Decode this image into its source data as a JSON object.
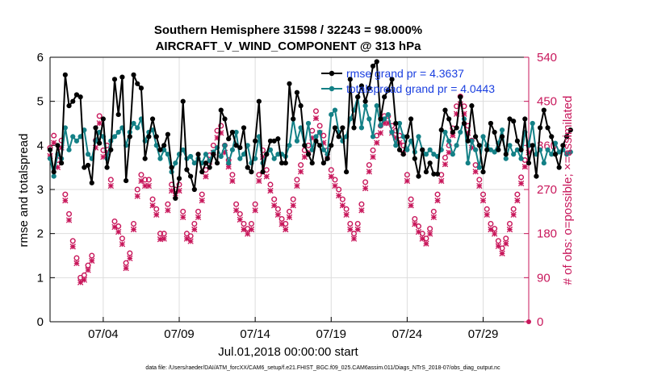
{
  "chart_data": {
    "type": "line",
    "title_line1": "Southern Hemisphere 31598 / 32243 = 98.000%",
    "title_line2": "AIRCRAFT_V_WIND_COMPONENT @ 313 hPa",
    "xlabel": "Jul.01,2018 00:00:00 start",
    "ylabel": "rmse and totalspread",
    "ylabel_right": "# of obs: o=possible; ×=assimilated",
    "xlim": [
      0.5,
      32.0
    ],
    "ylim": [
      0,
      6
    ],
    "ylim_right": [
      0,
      540
    ],
    "x_ticks": [
      {
        "x": 4,
        "label": "07/04"
      },
      {
        "x": 9,
        "label": "07/09"
      },
      {
        "x": 14,
        "label": "07/14"
      },
      {
        "x": 19,
        "label": "07/19"
      },
      {
        "x": 24,
        "label": "07/24"
      },
      {
        "x": 29,
        "label": "07/29"
      }
    ],
    "y_ticks": [
      0,
      1,
      2,
      3,
      4,
      5,
      6
    ],
    "y_ticks_right": [
      0,
      90,
      180,
      270,
      360,
      450,
      540
    ],
    "footer": "data file: /Users/raeder/DAI/ATM_forcXX/CAM6_setup/f.e21.FHIST_BGC.f09_025.CAM6assim.011/Diags_NTrS_2018-07/obs_diag_output.nc",
    "colors": {
      "rmse": "#000000",
      "spread": "#138086",
      "obs": "#c8175b",
      "legend_text": "#1a3fe0",
      "grid": "#dddddd"
    },
    "legend": [
      {
        "label": "rmse grand pr = 4.3637",
        "series": "rmse"
      },
      {
        "label": "totalspread grand pr = 4.0443",
        "series": "spread"
      }
    ],
    "series": [
      {
        "name": "rmse",
        "x_start": 0.5,
        "x_step": 0.25,
        "values": [
          3.9,
          3.4,
          4.0,
          3.6,
          5.6,
          4.9,
          5.0,
          5.15,
          5.1,
          3.5,
          3.55,
          3.15,
          4.4,
          4.05,
          4.6,
          3.5,
          3.9,
          5.5,
          4.7,
          5.55,
          3.2,
          4.2,
          5.6,
          5.4,
          5.3,
          3.7,
          4.2,
          4.6,
          4.2,
          3.9,
          4.0,
          4.25,
          3.5,
          2.8,
          3.25,
          5.0,
          3.45,
          3.3,
          3.0,
          3.8,
          3.4,
          3.6,
          3.5,
          3.8,
          3.6,
          4.8,
          4.6,
          4.15,
          4.3,
          4.0,
          3.95,
          4.4,
          3.5,
          3.4,
          4.1,
          5.0,
          3.4,
          3.8,
          4.1,
          4.1,
          4.15,
          3.6,
          3.6,
          5.4,
          4.6,
          5.2,
          4.9,
          4.0,
          3.8,
          3.6,
          4.1,
          4.0,
          3.6,
          3.7,
          4.0,
          4.4,
          4.2,
          4.4,
          3.4,
          5.5,
          4.4,
          5.1,
          5.35,
          5.0,
          5.3,
          5.8,
          5.9,
          4.6,
          5.1,
          5.25,
          5.5,
          4.5,
          3.9,
          3.8,
          4.2,
          4.6,
          3.7,
          3.3,
          3.9,
          3.4,
          3.6,
          3.35,
          3.35,
          4.35,
          4.8,
          4.6,
          4.3,
          4.4,
          5.1,
          4.5,
          4.1,
          4.9,
          4.2,
          4.0,
          3.4,
          3.9,
          4.5,
          4.3,
          3.9,
          4.2,
          3.8,
          4.6,
          4.55,
          4.1,
          3.9,
          4.6,
          3.6,
          4.0,
          3.3,
          4.4,
          4.8,
          4.4,
          4.2,
          3.8,
          3.5,
          4.0,
          4.2,
          4.35
        ]
      },
      {
        "name": "totalspread",
        "x_start": 0.5,
        "x_step": 0.25,
        "values": [
          3.7,
          3.3,
          3.8,
          3.7,
          4.4,
          3.9,
          4.2,
          4.1,
          4.2,
          4.35,
          3.8,
          3.7,
          4.1,
          4.3,
          4.2,
          3.7,
          4.1,
          4.2,
          4.3,
          4.4,
          4.0,
          4.3,
          4.5,
          4.4,
          4.6,
          4.1,
          4.3,
          4.35,
          4.0,
          3.7,
          3.9,
          3.8,
          3.4,
          3.6,
          3.8,
          3.9,
          3.7,
          3.75,
          3.6,
          3.7,
          3.6,
          3.8,
          3.65,
          3.85,
          3.95,
          3.75,
          4.0,
          3.6,
          3.9,
          4.3,
          3.7,
          3.8,
          4.0,
          3.6,
          3.7,
          4.2,
          3.6,
          3.8,
          3.9,
          3.7,
          3.8,
          3.8,
          3.75,
          4.0,
          4.6,
          4.1,
          4.4,
          4.0,
          4.5,
          3.9,
          4.2,
          4.3,
          3.9,
          3.8,
          4.7,
          4.8,
          4.3,
          4.1,
          4.2,
          4.6,
          4.8,
          5.1,
          4.4,
          4.9,
          4.6,
          4.2,
          4.9,
          4.45,
          4.6,
          4.7,
          4.3,
          4.0,
          4.5,
          4.2,
          3.9,
          4.1,
          3.85,
          4.2,
          3.9,
          3.8,
          3.9,
          3.8,
          3.75,
          3.9,
          4.3,
          4.1,
          3.8,
          4.0,
          4.3,
          4.6,
          3.6,
          4.1,
          3.9,
          3.5,
          4.2,
          4.0,
          3.9,
          3.85,
          4.05,
          4.35,
          3.7,
          4.0,
          3.8,
          3.9,
          3.7,
          4.3,
          4.0,
          4.5,
          3.8,
          3.9,
          3.6,
          3.9,
          3.8,
          4.05,
          3.85,
          3.9,
          3.8,
          3.85
        ]
      },
      {
        "name": "obs_possible",
        "x_start": 0.5,
        "x_step": 0.25,
        "values": [
          355,
          380,
          330,
          370,
          260,
          220,
          165,
          130,
          90,
          95,
          115,
          135,
          370,
          420,
          350,
          360,
          290,
          205,
          195,
          170,
          120,
          140,
          200,
          270,
          300,
          290,
          290,
          250,
          230,
          180,
          180,
          240,
          280,
          270,
          280,
          225,
          180,
          175,
          200,
          225,
          260,
          310,
          340,
          360,
          390,
          400,
          360,
          330,
          300,
          240,
          220,
          200,
          190,
          200,
          240,
          300,
          350,
          310,
          280,
          250,
          230,
          210,
          200,
          225,
          250,
          290,
          320,
          350,
          360,
          390,
          430,
          400,
          380,
          350,
          310,
          290,
          270,
          250,
          230,
          200,
          180,
          200,
          240,
          285,
          320,
          350,
          380,
          400,
          420,
          420,
          400,
          390,
          380,
          360,
          300,
          250,
          210,
          195,
          180,
          170,
          190,
          225,
          260,
          300,
          335,
          360,
          395,
          440,
          460,
          440,
          400,
          370,
          320,
          290,
          260,
          230,
          200,
          190,
          165,
          150,
          170,
          200,
          230,
          260,
          295,
          330,
          360,
          380,
          400,
          380,
          350,
          300,
          260,
          220,
          190,
          180,
          160
        ]
      },
      {
        "name": "obs_assimilated",
        "x_start": 0.5,
        "x_step": 0.25,
        "values": [
          345,
          372,
          322,
          362,
          254,
          214,
          160,
          126,
          87,
          92,
          112,
          131,
          362,
          412,
          343,
          352,
          284,
          200,
          190,
          165,
          116,
          136,
          195,
          263,
          294,
          284,
          284,
          244,
          225,
          175,
          176,
          234,
          274,
          264,
          274,
          220,
          176,
          171,
          195,
          220,
          254,
          303,
          333,
          352,
          382,
          392,
          352,
          323,
          294,
          234,
          215,
          195,
          186,
          195,
          234,
          294,
          343,
          303,
          274,
          244,
          225,
          206,
          195,
          220,
          244,
          284,
          313,
          343,
          352,
          382,
          422,
          392,
          372,
          343,
          303,
          284,
          264,
          244,
          225,
          195,
          176,
          195,
          234,
          279,
          313,
          343,
          372,
          392,
          412,
          412,
          392,
          382,
          372,
          352,
          294,
          244,
          206,
          190,
          176,
          166,
          186,
          220,
          254,
          294,
          328,
          352,
          387,
          431,
          451,
          431,
          392,
          362,
          313,
          284,
          254,
          225,
          195,
          186,
          161,
          146,
          166,
          195,
          225,
          254,
          289,
          323,
          352,
          372,
          392,
          372,
          343,
          294,
          254,
          215,
          186,
          176,
          156
        ]
      }
    ]
  }
}
